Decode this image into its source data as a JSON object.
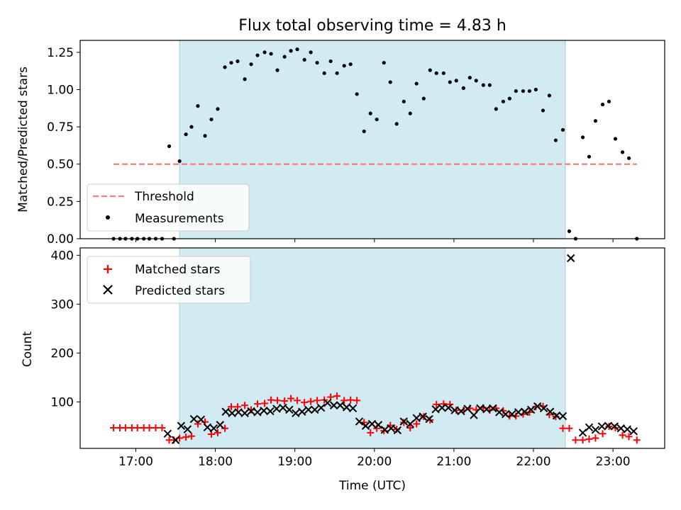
{
  "chart_data": [
    {
      "type": "scatter",
      "title": "Flux total observing time = 4.83 h",
      "xlabel": "",
      "ylabel": "Matched/Predicted stars",
      "ylim": [
        0,
        1.33
      ],
      "yticks": [
        "0.00",
        "0.25",
        "0.50",
        "0.75",
        "1.00",
        "1.25"
      ],
      "x_range_hours": [
        16.3,
        23.65
      ],
      "shaded_span_hours": [
        17.55,
        22.4
      ],
      "shaded_color": "#add8e6",
      "threshold": {
        "name": "Threshold",
        "value": 0.5,
        "x_start": 16.72,
        "x_end": 23.3,
        "color": "#f08080",
        "style": "dashed"
      },
      "series": [
        {
          "name": "Measurements",
          "color": "#000000",
          "marker": "dot",
          "points": [
            [
              16.72,
              0
            ],
            [
              16.8,
              0
            ],
            [
              16.87,
              0
            ],
            [
              16.95,
              0
            ],
            [
              17.02,
              0
            ],
            [
              17.1,
              0
            ],
            [
              17.17,
              0
            ],
            [
              17.25,
              0
            ],
            [
              17.33,
              0
            ],
            [
              17.42,
              0.62
            ],
            [
              17.48,
              0
            ],
            [
              17.55,
              0.52
            ],
            [
              17.63,
              0.7
            ],
            [
              17.7,
              0.75
            ],
            [
              17.78,
              0.89
            ],
            [
              17.87,
              0.69
            ],
            [
              17.95,
              0.8
            ],
            [
              18.03,
              0.87
            ],
            [
              18.12,
              1.15
            ],
            [
              18.2,
              1.18
            ],
            [
              18.28,
              1.19
            ],
            [
              18.37,
              1.07
            ],
            [
              18.45,
              1.17
            ],
            [
              18.53,
              1.23
            ],
            [
              18.62,
              1.25
            ],
            [
              18.7,
              1.24
            ],
            [
              18.78,
              1.13
            ],
            [
              18.87,
              1.22
            ],
            [
              18.95,
              1.26
            ],
            [
              19.03,
              1.27
            ],
            [
              19.12,
              1.2
            ],
            [
              19.2,
              1.25
            ],
            [
              19.28,
              1.18
            ],
            [
              19.37,
              1.11
            ],
            [
              19.45,
              1.19
            ],
            [
              19.53,
              1.11
            ],
            [
              19.62,
              1.16
            ],
            [
              19.7,
              1.17
            ],
            [
              19.78,
              0.97
            ],
            [
              19.87,
              0.72
            ],
            [
              19.95,
              0.84
            ],
            [
              20.03,
              0.8
            ],
            [
              20.12,
              1.18
            ],
            [
              20.2,
              1.05
            ],
            [
              20.28,
              0.77
            ],
            [
              20.37,
              0.92
            ],
            [
              20.45,
              0.84
            ],
            [
              20.53,
              1.04
            ],
            [
              20.62,
              0.94
            ],
            [
              20.7,
              1.13
            ],
            [
              20.78,
              1.11
            ],
            [
              20.87,
              1.11
            ],
            [
              20.95,
              1.05
            ],
            [
              21.03,
              1.06
            ],
            [
              21.12,
              1.01
            ],
            [
              21.2,
              1.08
            ],
            [
              21.28,
              1.06
            ],
            [
              21.37,
              1.03
            ],
            [
              21.45,
              1.03
            ],
            [
              21.53,
              0.87
            ],
            [
              21.62,
              0.92
            ],
            [
              21.7,
              0.94
            ],
            [
              21.78,
              0.99
            ],
            [
              21.87,
              0.99
            ],
            [
              21.95,
              0.99
            ],
            [
              22.03,
              1.0
            ],
            [
              22.12,
              0.86
            ],
            [
              22.2,
              0.96
            ],
            [
              22.28,
              0.66
            ],
            [
              22.37,
              0.73
            ],
            [
              22.45,
              0.05
            ],
            [
              22.53,
              0
            ],
            [
              22.62,
              0.68
            ],
            [
              22.7,
              0.55
            ],
            [
              22.78,
              0.79
            ],
            [
              22.87,
              0.9
            ],
            [
              22.95,
              0.92
            ],
            [
              23.03,
              0.67
            ],
            [
              23.12,
              0.58
            ],
            [
              23.2,
              0.54
            ],
            [
              23.3,
              0
            ]
          ]
        }
      ]
    },
    {
      "type": "scatter",
      "title": "",
      "xlabel": "Time (UTC)",
      "ylabel": "Count",
      "ylim": [
        5,
        415
      ],
      "yticks": [
        "100",
        "200",
        "300",
        "400"
      ],
      "xticks": [
        "17:00",
        "18:00",
        "19:00",
        "20:00",
        "21:00",
        "22:00",
        "23:00"
      ],
      "x_range_hours": [
        16.3,
        23.65
      ],
      "series": [
        {
          "name": "Matched stars",
          "color": "#ff0000",
          "marker": "plus",
          "points": [
            [
              16.72,
              47
            ],
            [
              16.8,
              47
            ],
            [
              16.87,
              47
            ],
            [
              16.95,
              47
            ],
            [
              17.02,
              47
            ],
            [
              17.1,
              47
            ],
            [
              17.17,
              47
            ],
            [
              17.25,
              47
            ],
            [
              17.33,
              47
            ],
            [
              17.42,
              22
            ],
            [
              17.48,
              22
            ],
            [
              17.55,
              26
            ],
            [
              17.63,
              28
            ],
            [
              17.7,
              30
            ],
            [
              17.78,
              55
            ],
            [
              17.87,
              59
            ],
            [
              17.95,
              34
            ],
            [
              18.03,
              37
            ],
            [
              18.12,
              46
            ],
            [
              18.2,
              90
            ],
            [
              18.28,
              90
            ],
            [
              18.37,
              93
            ],
            [
              18.45,
              84
            ],
            [
              18.53,
              96
            ],
            [
              18.62,
              97
            ],
            [
              18.7,
              104
            ],
            [
              18.78,
              103
            ],
            [
              18.87,
              102
            ],
            [
              18.95,
              107
            ],
            [
              19.03,
              103
            ],
            [
              19.12,
              99
            ],
            [
              19.2,
              101
            ],
            [
              19.28,
              103
            ],
            [
              19.37,
              104
            ],
            [
              19.45,
              110
            ],
            [
              19.53,
              112
            ],
            [
              19.62,
              103
            ],
            [
              19.7,
              104
            ],
            [
              19.78,
              103
            ],
            [
              19.87,
              58
            ],
            [
              19.95,
              37
            ],
            [
              20.03,
              46
            ],
            [
              20.12,
              41
            ],
            [
              20.2,
              52
            ],
            [
              20.28,
              44
            ],
            [
              20.37,
              58
            ],
            [
              20.45,
              47
            ],
            [
              20.53,
              55
            ],
            [
              20.62,
              70
            ],
            [
              20.7,
              63
            ],
            [
              20.78,
              95
            ],
            [
              20.87,
              96
            ],
            [
              20.95,
              95
            ],
            [
              21.03,
              83
            ],
            [
              21.12,
              83
            ],
            [
              21.2,
              87
            ],
            [
              21.28,
              84
            ],
            [
              21.37,
              88
            ],
            [
              21.45,
              83
            ],
            [
              21.53,
              87
            ],
            [
              21.62,
              82
            ],
            [
              21.7,
              71
            ],
            [
              21.78,
              71
            ],
            [
              21.87,
              75
            ],
            [
              21.95,
              79
            ],
            [
              22.03,
              90
            ],
            [
              22.12,
              91
            ],
            [
              22.2,
              74
            ],
            [
              22.28,
              70
            ],
            [
              22.37,
              46
            ],
            [
              22.45,
              46
            ],
            [
              22.53,
              22
            ],
            [
              22.62,
              22
            ],
            [
              22.7,
              24
            ],
            [
              22.78,
              26
            ],
            [
              22.87,
              35
            ],
            [
              22.95,
              50
            ],
            [
              23.03,
              47
            ],
            [
              23.12,
              32
            ],
            [
              23.2,
              29
            ],
            [
              23.3,
              22
            ]
          ]
        },
        {
          "name": "Predicted stars",
          "color": "#000000",
          "marker": "x",
          "points": [
            [
              17.4,
              35
            ],
            [
              17.5,
              22
            ],
            [
              17.57,
              51
            ],
            [
              17.65,
              44
            ],
            [
              17.73,
              65
            ],
            [
              17.82,
              64
            ],
            [
              17.9,
              48
            ],
            [
              17.98,
              46
            ],
            [
              18.06,
              53
            ],
            [
              18.13,
              80
            ],
            [
              18.21,
              77
            ],
            [
              18.29,
              79
            ],
            [
              18.37,
              77
            ],
            [
              18.45,
              81
            ],
            [
              18.53,
              79
            ],
            [
              18.61,
              82
            ],
            [
              18.69,
              81
            ],
            [
              18.77,
              86
            ],
            [
              18.85,
              88
            ],
            [
              18.93,
              84
            ],
            [
              19.01,
              77
            ],
            [
              19.09,
              80
            ],
            [
              19.17,
              84
            ],
            [
              19.25,
              84
            ],
            [
              19.33,
              88
            ],
            [
              19.41,
              98
            ],
            [
              19.49,
              93
            ],
            [
              19.57,
              93
            ],
            [
              19.65,
              89
            ],
            [
              19.73,
              87
            ],
            [
              19.81,
              60
            ],
            [
              19.89,
              51
            ],
            [
              19.97,
              55
            ],
            [
              20.05,
              53
            ],
            [
              20.13,
              43
            ],
            [
              20.21,
              46
            ],
            [
              20.29,
              42
            ],
            [
              20.37,
              60
            ],
            [
              20.45,
              55
            ],
            [
              20.53,
              67
            ],
            [
              20.61,
              70
            ],
            [
              20.69,
              65
            ],
            [
              20.77,
              85
            ],
            [
              20.85,
              88
            ],
            [
              20.93,
              88
            ],
            [
              21.01,
              83
            ],
            [
              21.09,
              81
            ],
            [
              21.17,
              86
            ],
            [
              21.25,
              73
            ],
            [
              21.33,
              87
            ],
            [
              21.41,
              85
            ],
            [
              21.49,
              87
            ],
            [
              21.57,
              79
            ],
            [
              21.65,
              75
            ],
            [
              21.73,
              75
            ],
            [
              21.81,
              79
            ],
            [
              21.89,
              80
            ],
            [
              21.97,
              84
            ],
            [
              22.05,
              91
            ],
            [
              22.13,
              87
            ],
            [
              22.21,
              80
            ],
            [
              22.29,
              72
            ],
            [
              22.37,
              71
            ],
            [
              22.47,
              394
            ],
            [
              22.62,
              37
            ],
            [
              22.7,
              48
            ],
            [
              22.78,
              43
            ],
            [
              22.86,
              50
            ],
            [
              22.94,
              51
            ],
            [
              23.02,
              50
            ],
            [
              23.1,
              46
            ],
            [
              23.18,
              44
            ],
            [
              23.26,
              40
            ]
          ]
        }
      ]
    }
  ]
}
